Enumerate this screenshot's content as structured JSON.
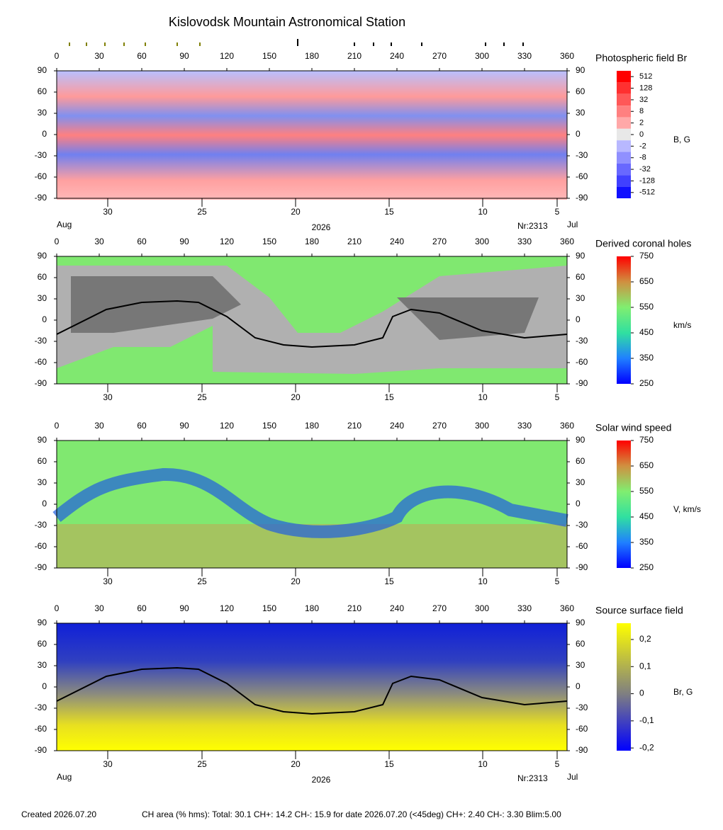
{
  "title": "Kislovodsk Mountain Astronomical Station",
  "chart_data": [
    {
      "type": "map",
      "title": "Photospheric field Br",
      "unit": "B, G",
      "xlim": [
        0,
        360
      ],
      "xticks": [
        0,
        30,
        60,
        90,
        120,
        150,
        180,
        210,
        240,
        270,
        300,
        330,
        360
      ],
      "ylim": [
        -90,
        90
      ],
      "yticks": [
        90,
        60,
        30,
        0,
        -30,
        -60,
        -90
      ],
      "date_ticks": [
        {
          "value": 36,
          "label": "30"
        },
        {
          "value": 102.5,
          "label": "25"
        },
        {
          "value": 168.5,
          "label": "20"
        },
        {
          "value": 234.5,
          "label": "15"
        },
        {
          "value": 300.5,
          "label": "10"
        },
        {
          "value": 353,
          "label": "5"
        }
      ],
      "date_notes": {
        "left": "Aug",
        "center": "2026",
        "right": "Nr:2313",
        "end": "Jul"
      },
      "levels": [
        512,
        128,
        32,
        8,
        2,
        0,
        -2,
        -8,
        -32,
        -128,
        -512
      ],
      "level_colors": [
        "#ff0000",
        "#ff3030",
        "#ff5858",
        "#ff8080",
        "#ffa8a8",
        "#e8e8e8",
        "#b8b8ff",
        "#9090ff",
        "#6868ff",
        "#4040ff",
        "#1010ff"
      ]
    },
    {
      "type": "map",
      "title": "Derived coronal holes",
      "unit": "km/s",
      "xlim": [
        0,
        360
      ],
      "xticks": [
        0,
        30,
        60,
        90,
        120,
        150,
        180,
        210,
        240,
        270,
        300,
        330,
        360
      ],
      "ylim": [
        -90,
        90
      ],
      "yticks": [
        90,
        60,
        30,
        0,
        -30,
        -60,
        -90
      ],
      "date_ticks": [
        {
          "value": 36,
          "label": "30"
        },
        {
          "value": 102.5,
          "label": "25"
        },
        {
          "value": 168.5,
          "label": "20"
        },
        {
          "value": 234.5,
          "label": "15"
        },
        {
          "value": 300.5,
          "label": "10"
        },
        {
          "value": 353,
          "label": "5"
        }
      ],
      "clim": [
        250,
        750
      ],
      "cticks": [
        750,
        650,
        550,
        450,
        350,
        250
      ],
      "neutral_line": {
        "x": [
          0,
          35,
          60,
          85,
          100,
          120,
          140,
          160,
          180,
          210,
          230,
          237,
          250,
          270,
          300,
          330,
          360
        ],
        "y": [
          -20,
          15,
          25,
          27,
          25,
          5,
          -25,
          -35,
          -38,
          -35,
          -25,
          5,
          15,
          10,
          -15,
          -25,
          -20
        ]
      }
    },
    {
      "type": "map",
      "title": "Solar wind speed",
      "unit": "V, km/s",
      "xlim": [
        0,
        360
      ],
      "xticks": [
        0,
        30,
        60,
        90,
        120,
        150,
        180,
        210,
        240,
        270,
        300,
        330,
        360
      ],
      "ylim": [
        -90,
        90
      ],
      "yticks": [
        90,
        60,
        30,
        0,
        -30,
        -60,
        -90
      ],
      "date_ticks": [
        {
          "value": 36,
          "label": "30"
        },
        {
          "value": 102.5,
          "label": "25"
        },
        {
          "value": 168.5,
          "label": "20"
        },
        {
          "value": 234.5,
          "label": "15"
        },
        {
          "value": 300.5,
          "label": "10"
        },
        {
          "value": 353,
          "label": "5"
        }
      ],
      "clim": [
        250,
        750
      ],
      "cticks": [
        750,
        650,
        550,
        450,
        350,
        250
      ]
    },
    {
      "type": "map",
      "title": "Source surface field",
      "unit": "Br, G",
      "xlim": [
        0,
        360
      ],
      "xticks": [
        0,
        30,
        60,
        90,
        120,
        150,
        180,
        210,
        240,
        270,
        300,
        330,
        360
      ],
      "ylim": [
        -90,
        90
      ],
      "yticks": [
        90,
        60,
        30,
        0,
        -30,
        -60,
        -90
      ],
      "date_ticks": [
        {
          "value": 36,
          "label": "30"
        },
        {
          "value": 102.5,
          "label": "25"
        },
        {
          "value": 168.5,
          "label": "20"
        },
        {
          "value": 234.5,
          "label": "15"
        },
        {
          "value": 300.5,
          "label": "10"
        },
        {
          "value": 353,
          "label": "5"
        }
      ],
      "date_notes": {
        "left": "Aug",
        "center": "2026",
        "right": "Nr:2313",
        "end": "Jul"
      },
      "clim": [
        -0.21,
        0.26
      ],
      "cticks": [
        {
          "value": 0.2,
          "label": "0,2"
        },
        {
          "value": 0.1,
          "label": "0,1"
        },
        0,
        {
          "value": -0.1,
          "label": "-0,1"
        },
        {
          "value": -0.2,
          "label": "-0,2"
        }
      ],
      "neutral_line": {
        "x": [
          0,
          35,
          60,
          85,
          100,
          120,
          140,
          160,
          180,
          210,
          230,
          237,
          250,
          270,
          300,
          330,
          360
        ],
        "y": [
          -20,
          15,
          25,
          27,
          25,
          5,
          -25,
          -35,
          -38,
          -35,
          -25,
          5,
          15,
          10,
          -15,
          -25,
          -20
        ]
      }
    }
  ],
  "footer": {
    "created": "Created  2026.07.20",
    "ch_area": "CH area (% hms): Total: 30.1 CH+: 14.2   CH-: 15.9 for date 2026.07.20 (<45deg) CH+: 2.40    CH-: 3.30 Blim:5.00"
  }
}
